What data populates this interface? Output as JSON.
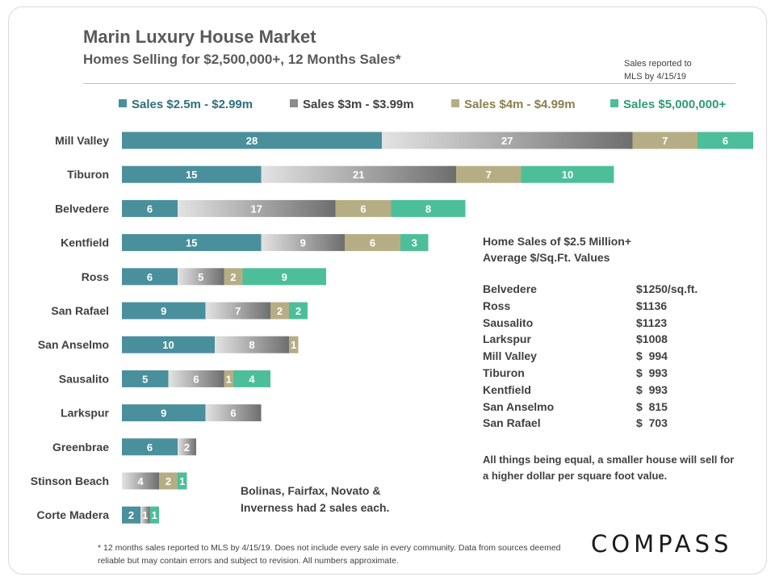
{
  "header": {
    "title": "Marin Luxury House Market",
    "subtitle": "Homes Selling for $2,500,000+, 12 Months Sales*",
    "report_note": "Sales reported to\nMLS by 4/15/19"
  },
  "chart_data": {
    "type": "bar",
    "orientation": "horizontal",
    "stacked": true,
    "categories": [
      "Mill Valley",
      "Tiburon",
      "Belvedere",
      "Kentfield",
      "Ross",
      "San Rafael",
      "San Anselmo",
      "Sausalito",
      "Larkspur",
      "Greenbrae",
      "Stinson Beach",
      "Corte Madera"
    ],
    "series": [
      {
        "name": "Sales $2.5m - $2.99m",
        "color": "#4a8f9c",
        "values": [
          28,
          15,
          6,
          15,
          6,
          9,
          10,
          5,
          9,
          6,
          0,
          2
        ]
      },
      {
        "name": "Sales $3m - $3.99m",
        "color": "#8c8c8c",
        "values": [
          27,
          21,
          17,
          9,
          5,
          7,
          8,
          6,
          6,
          2,
          4,
          1
        ]
      },
      {
        "name": "Sales $4m - $4.99m",
        "color": "#b5ae85",
        "values": [
          7,
          7,
          6,
          6,
          2,
          2,
          1,
          1,
          0,
          0,
          2,
          0
        ]
      },
      {
        "name": "Sales $5,000,000+",
        "color": "#4cbf9a",
        "values": [
          6,
          10,
          8,
          3,
          9,
          2,
          0,
          4,
          0,
          0,
          1,
          1
        ]
      }
    ],
    "legend_position": "top",
    "grid": false
  },
  "legend_text_colors": [
    "#2f6f7c",
    "#404040",
    "#8a7f4d",
    "#2e9b78"
  ],
  "price_panel": {
    "title_line1": "Home Sales of $2.5 Million+",
    "title_line2": "Average $/Sq.Ft. Values",
    "rows": [
      {
        "city": "Belvedere",
        "price": "$1250/sq.ft."
      },
      {
        "city": "Ross",
        "price": "$1136"
      },
      {
        "city": "Sausalito",
        "price": "$1123"
      },
      {
        "city": "Larkspur",
        "price": "$1008"
      },
      {
        "city": "Mill Valley",
        "price": "$  994"
      },
      {
        "city": "Tiburon",
        "price": "$  993"
      },
      {
        "city": "Kentfield",
        "price": "$  993"
      },
      {
        "city": "San Anselmo",
        "price": "$  815"
      },
      {
        "city": "San Rafael",
        "price": "$  703"
      }
    ],
    "comment": "All things being equal, a smaller house will sell for a higher dollar per square foot value."
  },
  "other_note": "Bolinas, Fairfax, Novato & Inverness had 2 sales each.",
  "footnote": "* 12 months sales reported to MLS by 4/15/19. Does not include every sale in every community. Data from sources deemed reliable but may contain errors and subject to revision. All numbers approximate.",
  "logo_text": "COMPASS"
}
